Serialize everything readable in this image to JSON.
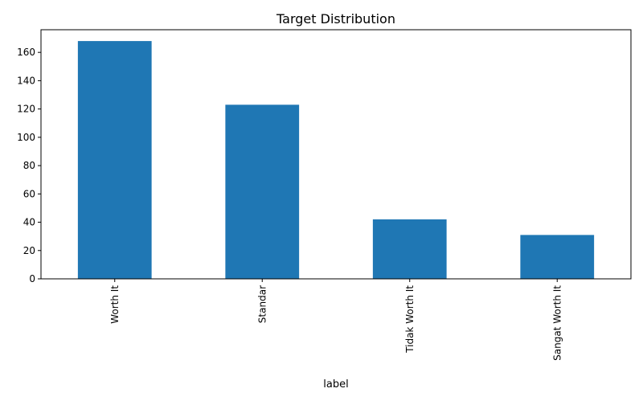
{
  "chart_data": {
    "type": "bar",
    "title": "Target Distribution",
    "xlabel": "label",
    "ylabel": "",
    "categories": [
      "Worth It",
      "Standar",
      "Tidak Worth It",
      "Sangat Worth It"
    ],
    "values": [
      168,
      123,
      42,
      31
    ],
    "ylim": [
      0,
      176
    ],
    "yticks": [
      0,
      20,
      40,
      60,
      80,
      100,
      120,
      140,
      160
    ],
    "xtick_rotation": 90,
    "grid": false,
    "legend": "none",
    "bar_color": "#1f77b4"
  }
}
